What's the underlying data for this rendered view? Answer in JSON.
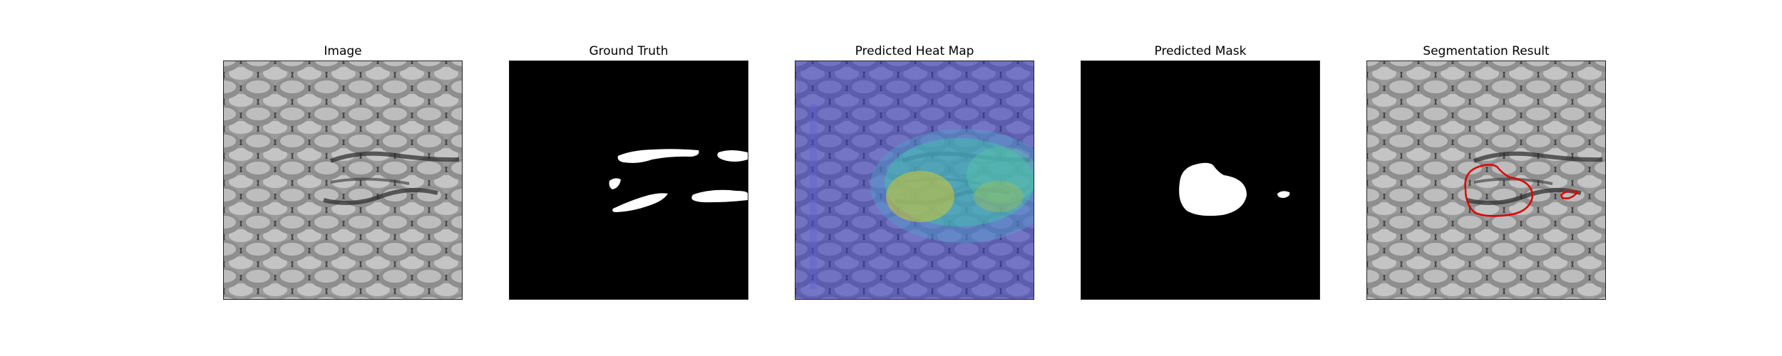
{
  "panels": [
    {
      "title": "Image"
    },
    {
      "title": "Ground Truth"
    },
    {
      "title": "Predicted Heat Map"
    },
    {
      "title": "Predicted Mask"
    },
    {
      "title": "Segmentation Result"
    }
  ],
  "colors": {
    "background": "#ffffff",
    "mask_foreground": "#ffffff",
    "mask_background": "#000000",
    "heatmap_low": "#3a3ad0",
    "heatmap_mid": "#3fc9a8",
    "heatmap_high": "#c8c43a",
    "contour": "#e00000",
    "texture_light": "#b8b8b8",
    "texture_dark": "#3a3a3a"
  }
}
